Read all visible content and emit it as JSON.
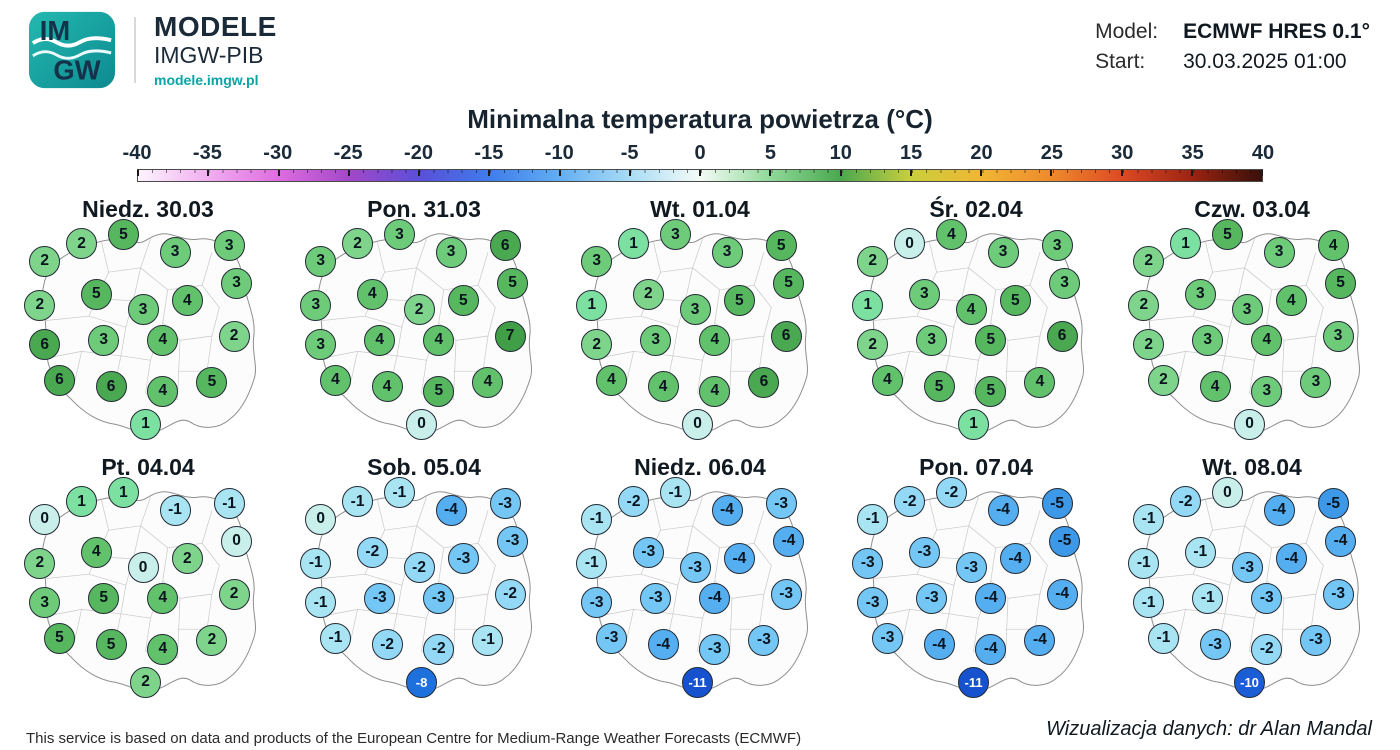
{
  "header": {
    "logo_im": "IM",
    "logo_gw": "GW",
    "brand": "MODELE",
    "sub": "IMGW-PIB",
    "url": "modele.imgw.pl",
    "model_label": "Model:",
    "model_value": "ECMWF HRES 0.1°",
    "start_label": "Start:",
    "start_value": "30.03.2025 01:00"
  },
  "title": "Minimalna temperatura powietrza (°C)",
  "chart_data": {
    "type": "scatter",
    "title": "Minimalna temperatura powietrza (°C)",
    "units": "°C",
    "colorbar": {
      "min": -40,
      "max": 40,
      "ticks": [
        "-40",
        "-35",
        "-30",
        "-25",
        "-20",
        "-15",
        "-10",
        "-5",
        "0",
        "5",
        "10",
        "15",
        "20",
        "25",
        "30",
        "35",
        "40"
      ],
      "gradient": [
        {
          "pos": 0,
          "color": "#fdf4fd"
        },
        {
          "pos": 6.25,
          "color": "#f1aef0"
        },
        {
          "pos": 12.5,
          "color": "#de6ce0"
        },
        {
          "pos": 18.75,
          "color": "#a348c8"
        },
        {
          "pos": 25,
          "color": "#5a4fd8"
        },
        {
          "pos": 31.25,
          "color": "#3f7ceb"
        },
        {
          "pos": 37.5,
          "color": "#62aef2"
        },
        {
          "pos": 43.75,
          "color": "#a8dcf5"
        },
        {
          "pos": 50,
          "color": "#f4fbf6"
        },
        {
          "pos": 56.25,
          "color": "#8fd998"
        },
        {
          "pos": 62.5,
          "color": "#4aa84f"
        },
        {
          "pos": 68.75,
          "color": "#c9cf3c"
        },
        {
          "pos": 75,
          "color": "#f0b634"
        },
        {
          "pos": 81.25,
          "color": "#ee8a2b"
        },
        {
          "pos": 87.5,
          "color": "#dd4a24"
        },
        {
          "pos": 93.75,
          "color": "#9c2412"
        },
        {
          "pos": 100,
          "color": "#381009"
        }
      ]
    },
    "positions": [
      [
        8,
        16
      ],
      [
        23,
        8
      ],
      [
        40,
        4
      ],
      [
        61,
        12
      ],
      [
        83,
        9
      ],
      [
        86,
        26
      ],
      [
        6,
        36
      ],
      [
        29,
        31
      ],
      [
        48,
        38
      ],
      [
        66,
        34
      ],
      [
        8,
        54
      ],
      [
        32,
        52
      ],
      [
        56,
        52
      ],
      [
        85,
        50
      ],
      [
        14,
        70
      ],
      [
        35,
        73
      ],
      [
        56,
        75
      ],
      [
        76,
        71
      ],
      [
        49,
        90
      ]
    ],
    "value_colors": {
      "7": "#3f9e46",
      "6": "#4aa850",
      "5": "#57b75f",
      "4": "#62c26c",
      "3": "#6ecb79",
      "2": "#7fd48b",
      "1": "#7ce0a0",
      "0": "#c9efeb",
      "-1": "#a9e4f2",
      "-2": "#93d9f5",
      "-3": "#74c7f4",
      "-4": "#55aef0",
      "-5": "#3d98e8",
      "-8": "#1e70dd",
      "-10": "#1a5dd4",
      "-11": "#1652cd"
    },
    "white_text_max": -6,
    "panels": [
      {
        "label": "Niedz. 30.03",
        "values": [
          2,
          2,
          5,
          3,
          3,
          3,
          2,
          5,
          3,
          4,
          6,
          3,
          4,
          2,
          6,
          6,
          4,
          5,
          1
        ]
      },
      {
        "label": "Pon. 31.03",
        "values": [
          3,
          2,
          3,
          3,
          6,
          5,
          3,
          4,
          2,
          5,
          3,
          4,
          4,
          7,
          4,
          4,
          5,
          4,
          0
        ]
      },
      {
        "label": "Wt. 01.04",
        "values": [
          3,
          1,
          3,
          3,
          5,
          5,
          1,
          2,
          3,
          5,
          2,
          3,
          4,
          6,
          4,
          4,
          4,
          6,
          0
        ]
      },
      {
        "label": "Śr. 02.04",
        "values": [
          2,
          0,
          4,
          3,
          3,
          3,
          1,
          3,
          4,
          5,
          2,
          3,
          5,
          6,
          4,
          5,
          5,
          4,
          1
        ]
      },
      {
        "label": "Czw. 03.04",
        "values": [
          2,
          1,
          5,
          3,
          4,
          5,
          2,
          3,
          3,
          4,
          2,
          3,
          4,
          3,
          2,
          4,
          3,
          3,
          0
        ]
      },
      {
        "label": "Pt. 04.04",
        "values": [
          0,
          1,
          1,
          -1,
          -1,
          0,
          2,
          4,
          0,
          2,
          3,
          5,
          4,
          2,
          5,
          5,
          4,
          2,
          2
        ]
      },
      {
        "label": "Sob. 05.04",
        "values": [
          0,
          -1,
          -1,
          -4,
          -3,
          -3,
          -1,
          -2,
          -2,
          -3,
          -1,
          -3,
          -3,
          -2,
          -1,
          -2,
          -2,
          -1,
          -8
        ]
      },
      {
        "label": "Niedz. 06.04",
        "values": [
          -1,
          -2,
          -1,
          -4,
          -3,
          -4,
          -1,
          -3,
          -3,
          -4,
          -3,
          -3,
          -4,
          -3,
          -3,
          -4,
          -3,
          -3,
          -11
        ]
      },
      {
        "label": "Pon. 07.04",
        "values": [
          -1,
          -2,
          -2,
          -4,
          -5,
          -5,
          -3,
          -3,
          -3,
          -4,
          -3,
          -3,
          -4,
          -4,
          -3,
          -4,
          -4,
          -4,
          -11
        ]
      },
      {
        "label": "Wt. 08.04",
        "values": [
          -1,
          -2,
          0,
          -4,
          -5,
          -4,
          -1,
          -1,
          -3,
          -4,
          -1,
          -1,
          -3,
          -3,
          -1,
          -3,
          -2,
          -3,
          -10
        ]
      }
    ]
  },
  "footer": {
    "left": "This service is based on data and products of the European Centre for Medium-Range Weather Forecasts (ECMWF)",
    "right": "Wizualizacja danych: dr Alan Mandal"
  }
}
